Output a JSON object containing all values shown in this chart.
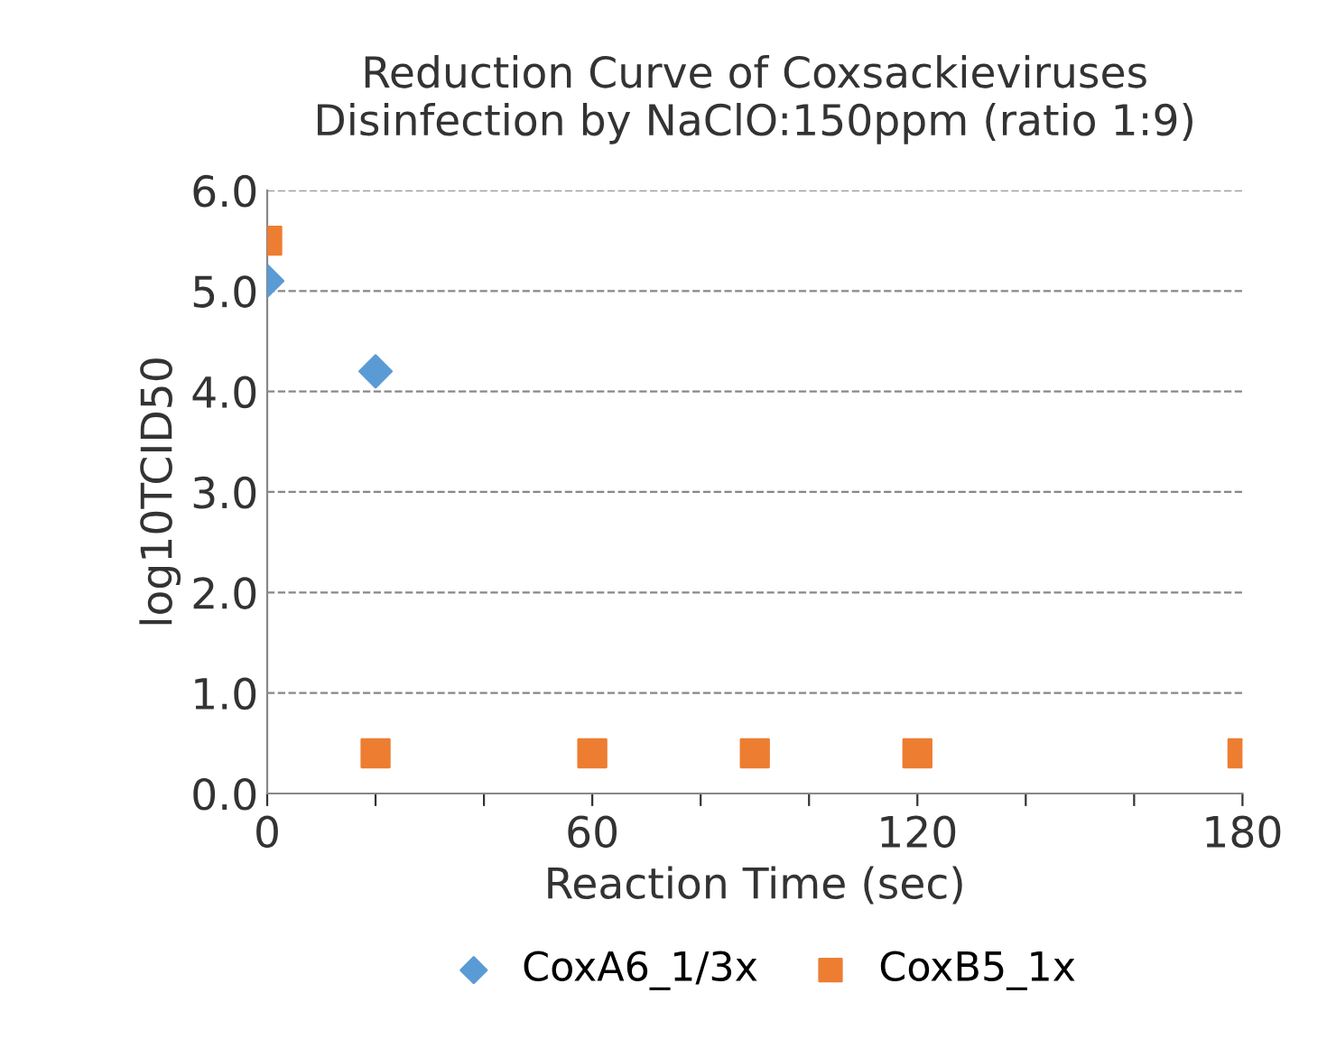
{
  "chart_data": {
    "type": "scatter",
    "title": "Reduction Curve of Coxsackieviruses\nDisinfection by NaClO:150ppm (ratio 1:9)",
    "xlabel": "Reaction Time (sec)",
    "ylabel": "log10TCID50",
    "series": [
      {
        "name": "CoxA6_1/3x",
        "color": "#5b9bd5",
        "marker": "diamond",
        "x": [
          0,
          20
        ],
        "values": [
          5.1,
          4.2
        ]
      },
      {
        "name": "CoxB5_1x",
        "color": "#ed7d31",
        "marker": "square",
        "x": [
          0,
          20,
          60,
          90,
          120,
          180
        ],
        "values": [
          5.5,
          0.4,
          0.4,
          0.4,
          0.4,
          0.4
        ]
      }
    ],
    "xlim": [
      0,
      180
    ],
    "xticks": [
      0,
      {
        "value": 20,
        "label": null
      },
      {
        "value": 40,
        "label": null
      },
      60,
      {
        "value": 80,
        "label": null
      },
      {
        "value": 100,
        "label": null
      },
      120,
      {
        "value": 140,
        "label": null
      },
      {
        "value": 160,
        "label": null
      },
      180
    ],
    "ylim": [
      0,
      6
    ],
    "yticks": [
      {
        "value": 0,
        "label": "0.0"
      },
      {
        "value": 1,
        "label": "1.0"
      },
      {
        "value": 2,
        "label": "2.0"
      },
      {
        "value": 3,
        "label": "3.0"
      },
      {
        "value": 4,
        "label": "4.0"
      },
      {
        "value": 5,
        "label": "5.0"
      },
      {
        "value": 6,
        "label": "6.0"
      }
    ],
    "grid": "y",
    "legend": "bottom"
  }
}
